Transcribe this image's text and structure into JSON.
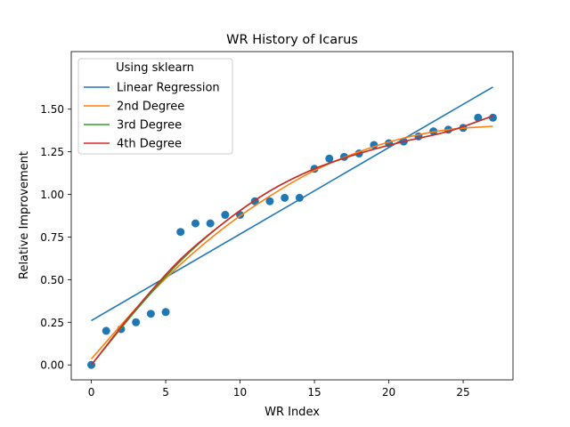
{
  "chart_data": {
    "type": "scatter",
    "title": "WR History of Icarus",
    "xlabel": "WR Index",
    "ylabel": "Relative Improvement",
    "xlim": [
      -1.35,
      28.35
    ],
    "ylim": [
      -0.0875,
      1.8375
    ],
    "xticks": [
      0,
      5,
      10,
      15,
      20,
      25
    ],
    "xtick_labels": [
      "0",
      "5",
      "10",
      "15",
      "20",
      "25"
    ],
    "yticks": [
      0,
      0.25,
      0.5,
      0.75,
      1.0,
      1.25,
      1.5
    ],
    "ytick_labels": [
      "0.00",
      "0.25",
      "0.50",
      "0.75",
      "1.00",
      "1.25",
      "1.50"
    ],
    "grid": false,
    "legend": {
      "title": "Using sklearn",
      "placement": "upper-left",
      "entries": [
        {
          "name": "Linear Regression",
          "color": "#1f77b4"
        },
        {
          "name": "2nd Degree",
          "color": "#ff7f0e"
        },
        {
          "name": "3rd Degree",
          "color": "#2ca02c"
        },
        {
          "name": "4th Degree",
          "color": "#d62728"
        }
      ]
    },
    "points": {
      "color": "#1f77b4",
      "x": [
        0,
        1,
        2,
        3,
        4,
        5,
        6,
        7,
        8,
        9,
        10,
        11,
        12,
        13,
        14,
        15,
        16,
        17,
        18,
        19,
        20,
        21,
        22,
        23,
        24,
        25,
        26,
        27
      ],
      "y": [
        0.0,
        0.2,
        0.21,
        0.25,
        0.3,
        0.31,
        0.78,
        0.83,
        0.83,
        0.88,
        0.88,
        0.96,
        0.96,
        0.98,
        0.98,
        1.15,
        1.21,
        1.22,
        1.24,
        1.29,
        1.3,
        1.31,
        1.34,
        1.37,
        1.38,
        1.39,
        1.45,
        1.45
      ]
    },
    "series": [
      {
        "name": "Linear Regression",
        "color": "#1f77b4",
        "x": [
          0,
          27
        ],
        "y": [
          0.26,
          1.63
        ]
      },
      {
        "name": "2nd Degree",
        "color": "#ff7f0e",
        "x": [
          0,
          3,
          6,
          9,
          12,
          15,
          18,
          21,
          24,
          27
        ],
        "y": [
          0.035,
          0.33,
          0.59,
          0.81,
          0.99,
          1.14,
          1.25,
          1.33,
          1.38,
          1.4
        ]
      },
      {
        "name": "3rd Degree",
        "color": "#2ca02c",
        "x": [
          0,
          3,
          6,
          9,
          12,
          15,
          18,
          21,
          24,
          27
        ],
        "y": [
          0.0,
          0.32,
          0.61,
          0.84,
          1.02,
          1.15,
          1.24,
          1.31,
          1.37,
          1.46
        ]
      },
      {
        "name": "4th Degree",
        "color": "#d62728",
        "x": [
          0,
          3,
          6,
          9,
          12,
          15,
          18,
          21,
          24,
          27
        ],
        "y": [
          0.0,
          0.33,
          0.62,
          0.84,
          1.02,
          1.15,
          1.24,
          1.31,
          1.37,
          1.46
        ]
      }
    ]
  }
}
